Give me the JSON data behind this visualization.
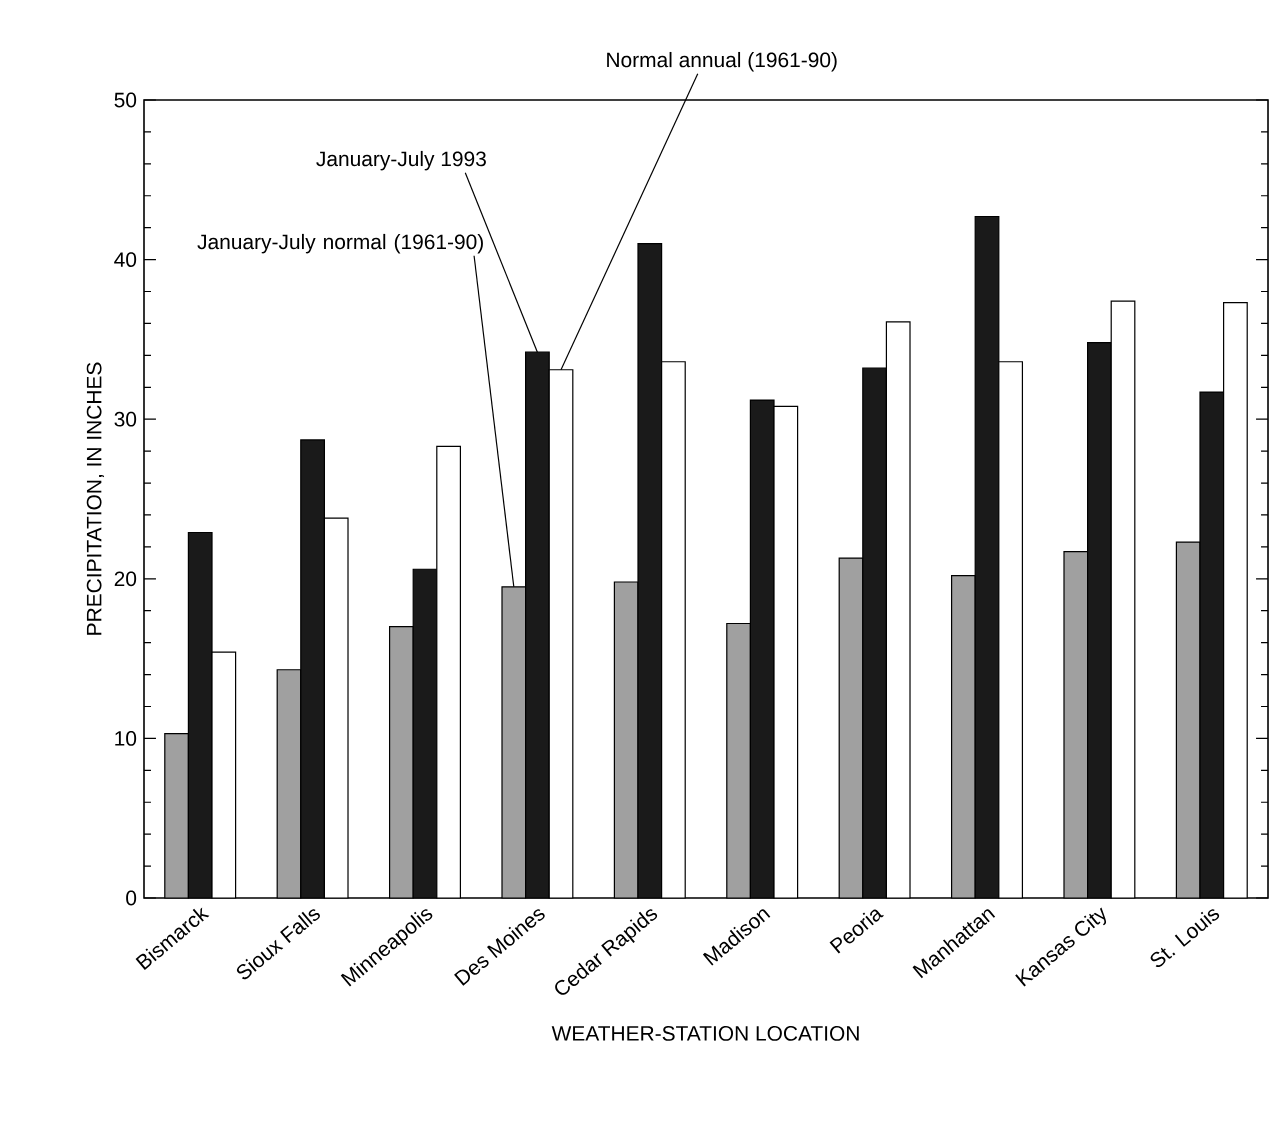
{
  "chart_data": {
    "type": "bar",
    "xlabel": "WEATHER-STATION LOCATION",
    "ylabel": "PRECIPITATION, IN INCHES",
    "categories": [
      "Bismarck",
      "Sioux Falls",
      "Minneapolis",
      "Des Moines",
      "Cedar Rapids",
      "Madison",
      "Peoria",
      "Manhattan",
      "Kansas City",
      "St. Louis"
    ],
    "series": [
      {
        "name": "January-July normal (1961-90)",
        "color": "#a0a0a0",
        "values": [
          10.3,
          14.3,
          17.0,
          19.5,
          19.8,
          17.2,
          21.3,
          20.2,
          21.7,
          22.3
        ]
      },
      {
        "name": "January-July 1993",
        "color": "#1a1a1a",
        "values": [
          22.9,
          28.7,
          20.6,
          34.2,
          41.0,
          31.2,
          33.2,
          42.7,
          34.8,
          31.7
        ]
      },
      {
        "name": "Normal annual (1961-90)",
        "color": "#ffffff",
        "values": [
          15.4,
          23.8,
          28.3,
          33.1,
          33.6,
          30.8,
          36.1,
          33.6,
          37.4,
          37.3
        ]
      }
    ],
    "ylim": [
      0,
      50
    ],
    "yticks": [
      0,
      10,
      20,
      30,
      40,
      50
    ],
    "legend": false,
    "grid": false
  }
}
